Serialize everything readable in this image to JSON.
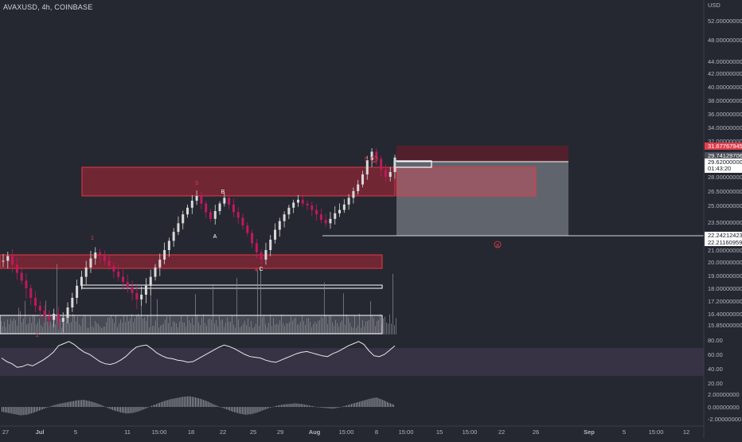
{
  "header": {
    "symbol_title": "AVAXUSD, 4h, COINBASE",
    "currency": "USD"
  },
  "colors": {
    "background": "#252831",
    "candle_up": "#d9d9d9",
    "candle_down": "#c2185b",
    "zone_fill": "#8b2535",
    "zone_stroke": "#e53946",
    "target_fill": "#6b7078",
    "stop_fill": "#5b1e2c",
    "oscillator_band": "#3b3448",
    "price_badge_red": "#e23d4b",
    "price_badge_white": "#ffffff"
  },
  "price_axis": {
    "labels": [
      "52.00000000",
      "48.00000000",
      "44.00000000",
      "42.00000000",
      "40.00000000",
      "38.00000000",
      "36.00000000",
      "34.00000000",
      "32.00000000",
      "29.74129706",
      "28.00000000",
      "26.50000000",
      "25.00000000",
      "23.50000000",
      "22.24212423",
      "22.21160959",
      "21.00000000",
      "20.00000000",
      "19.00000000",
      "18.00000000",
      "17.20000000",
      "16.40000000",
      "15.85000000"
    ],
    "last_price_badge": "31.67767945",
    "current_price": "29.62000000",
    "countdown": "01:43:20",
    "line_level_a": "22.24212423",
    "line_level_b": "22.21160959"
  },
  "rsi_axis": {
    "labels": [
      "80.00",
      "60.00",
      "40.00",
      "20.00"
    ]
  },
  "macd_axis": {
    "labels": [
      "2.00000000",
      "0.00000000",
      "-2.00000000"
    ]
  },
  "time_axis": {
    "labels": [
      "27",
      "Jul",
      "5",
      "11",
      "15:00",
      "18",
      "22",
      "25",
      "29",
      "Aug",
      "15:00",
      "8",
      "15:00",
      "15",
      "15:00",
      "22",
      "26",
      "Sep",
      "5",
      "15:00",
      "12"
    ]
  },
  "wave_labels": {
    "w1": "1",
    "w2": "2",
    "w3": "3",
    "w4": "4",
    "w5": "5",
    "wA": "A",
    "wB": "B",
    "wC": "C",
    "circled_5": "5",
    "circled_a": "a"
  },
  "price_series": {
    "description_free": true,
    "close": [
      20.1,
      20.5,
      19.8,
      19.2,
      18.6,
      18.0,
      17.4,
      16.9,
      16.6,
      16.3,
      16.1,
      16.4,
      16.0,
      16.2,
      16.8,
      17.4,
      18.2,
      18.9,
      19.6,
      20.3,
      20.8,
      20.5,
      20.1,
      19.7,
      19.3,
      18.9,
      18.5,
      18.1,
      17.7,
      17.3,
      17.6,
      18.2,
      18.9,
      19.6,
      20.2,
      21.0,
      21.8,
      22.6,
      23.4,
      24.2,
      24.8,
      25.5,
      26.0,
      25.2,
      24.4,
      23.8,
      24.5,
      25.2,
      25.8,
      25.1,
      24.4,
      23.9,
      23.2,
      22.5,
      21.6,
      20.8,
      20.2,
      21.0,
      21.9,
      22.8,
      23.6,
      24.2,
      24.8,
      25.3,
      25.6,
      25.2,
      25.0,
      24.6,
      24.2,
      23.7,
      23.4,
      23.8,
      24.3,
      24.6,
      25.1,
      25.8,
      26.5,
      27.2,
      28.2,
      29.4,
      30.4,
      29.5,
      28.6,
      28.0,
      28.4,
      29.62
    ],
    "rsi": [
      55,
      50,
      47,
      42,
      43,
      46,
      44,
      48,
      52,
      57,
      63,
      72,
      75,
      78,
      74,
      68,
      63,
      60,
      55,
      50,
      47,
      46,
      48,
      52,
      57,
      64,
      70,
      72,
      73,
      68,
      62,
      58,
      55,
      54,
      52,
      51,
      49,
      50,
      54,
      58,
      62,
      66,
      70,
      73,
      71,
      68,
      64,
      60,
      57,
      56,
      55,
      52,
      50,
      49,
      52,
      55,
      58,
      61,
      63,
      64,
      62,
      60,
      58,
      57,
      61,
      64,
      68,
      72,
      75,
      78,
      74,
      65,
      58,
      57,
      60,
      66,
      72
    ],
    "macd": [
      -0.8,
      -1.0,
      -1.2,
      -1.4,
      -1.3,
      -1.0,
      -0.6,
      -0.2,
      0.2,
      0.5,
      0.7,
      0.9,
      1.1,
      1.2,
      1.0,
      0.7,
      0.3,
      -0.2,
      -0.6,
      -0.9,
      -1.1,
      -1.0,
      -0.7,
      -0.3,
      0.2,
      0.6,
      1.0,
      1.3,
      1.5,
      1.7,
      1.8,
      1.6,
      1.3,
      0.9,
      0.4,
      0.0,
      -0.4,
      -0.8,
      -1.1,
      -1.3,
      -1.2,
      -0.9,
      -0.5,
      -0.1,
      0.2,
      0.4,
      0.5,
      0.6,
      0.5,
      0.3,
      0.1,
      -0.1,
      -0.2,
      -0.3,
      -0.1,
      0.2,
      0.5,
      0.8,
      1.1,
      1.4,
      1.6,
      1.2,
      0.7,
      0.3
    ]
  }
}
